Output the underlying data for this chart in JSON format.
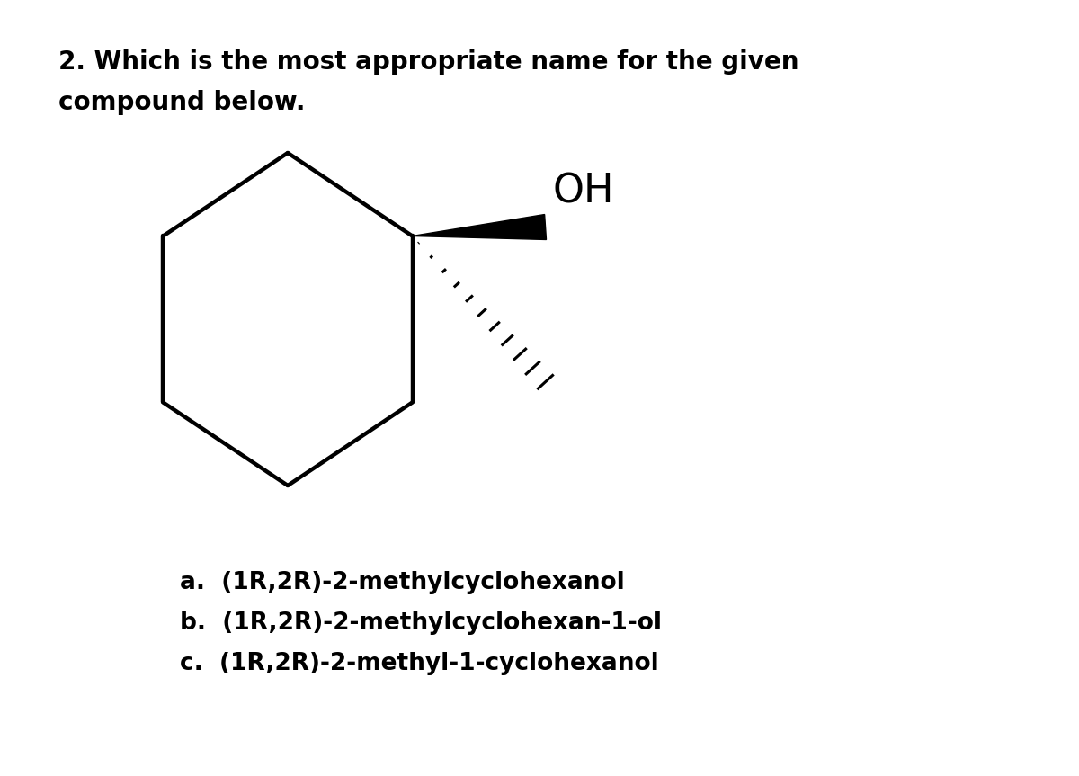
{
  "title_line1": "2. Which is the most appropriate name for the given",
  "title_line2": "compound below.",
  "answer_a": "a.  (1R,2R)-2-methylcyclohexanol",
  "answer_b": "b.  (1R,2R)-2-methylcyclohexan-1-ol",
  "answer_c": "c.  (1R,2R)-2-methyl-1-cyclohexanol",
  "bg_color": "#ffffff",
  "text_color": "#000000",
  "line_color": "#000000",
  "font_size_title": 20,
  "font_size_answers": 19,
  "font_size_oh": 32
}
